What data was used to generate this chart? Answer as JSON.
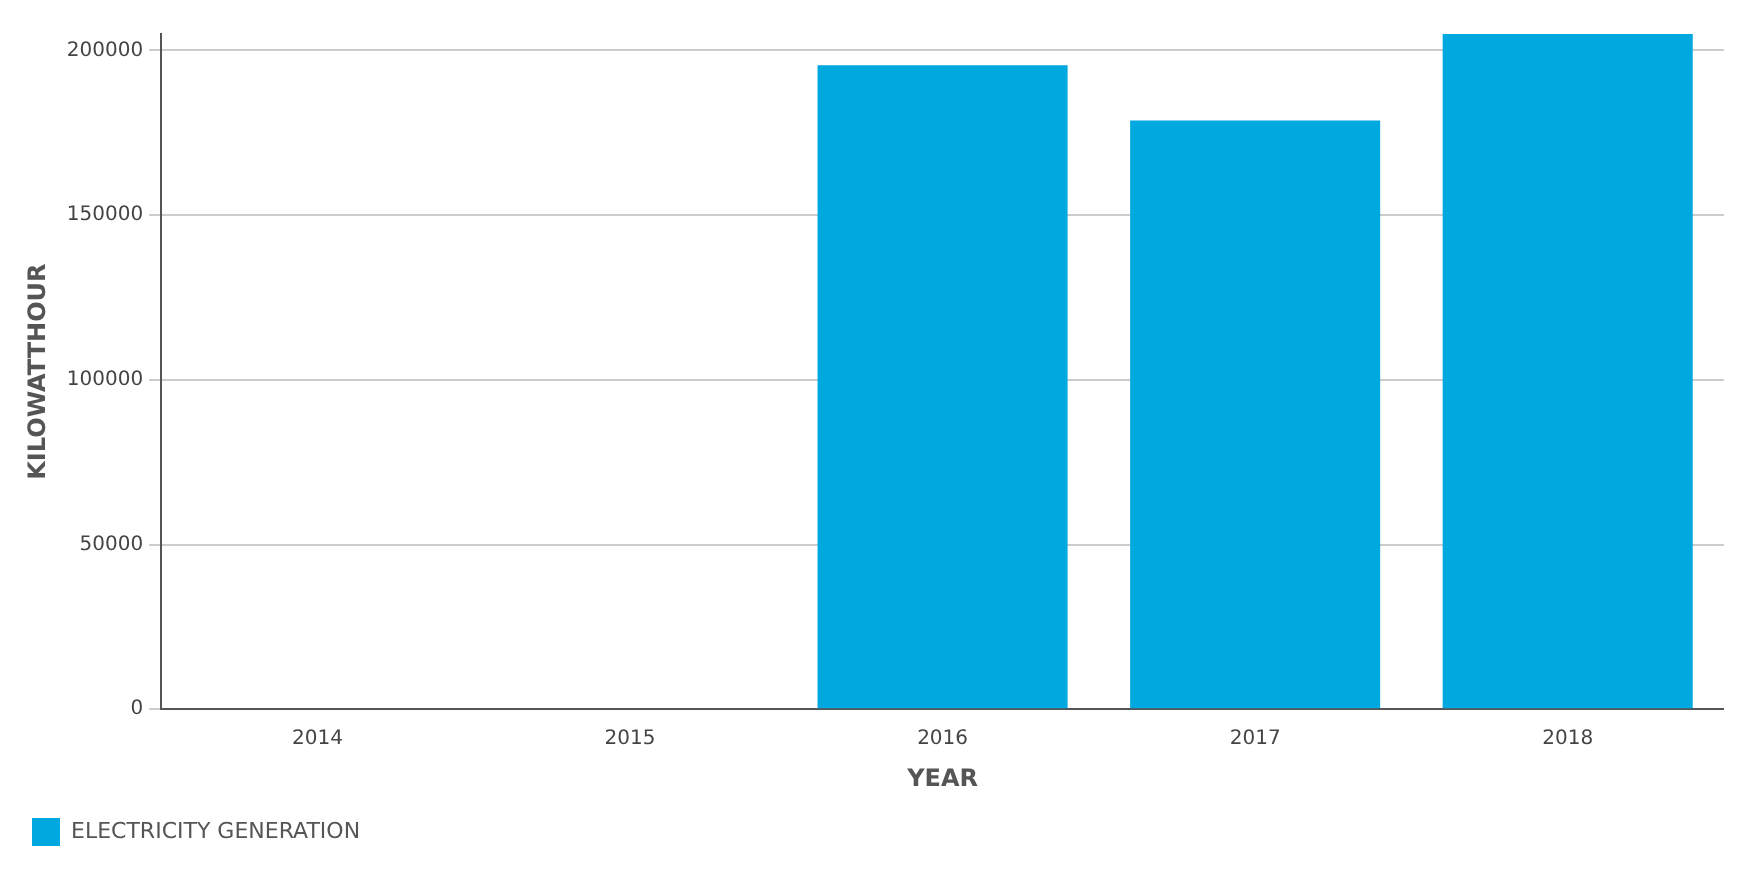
{
  "chart_data": {
    "type": "bar",
    "xlabel": "YEAR",
    "ylabel": "KILOWATTHOUR",
    "categories": [
      "2014",
      "2015",
      "2016",
      "2017",
      "2018"
    ],
    "series": [
      {
        "name": "ELECTRICITY GENERATION",
        "color": "#00a8e0",
        "values": [
          null,
          null,
          195500,
          178700,
          205000
        ]
      }
    ],
    "ylim": [
      0,
      205000
    ],
    "yticks": [
      0,
      50000,
      100000,
      150000,
      200000
    ],
    "grid": "y",
    "legend": "bottom left"
  }
}
